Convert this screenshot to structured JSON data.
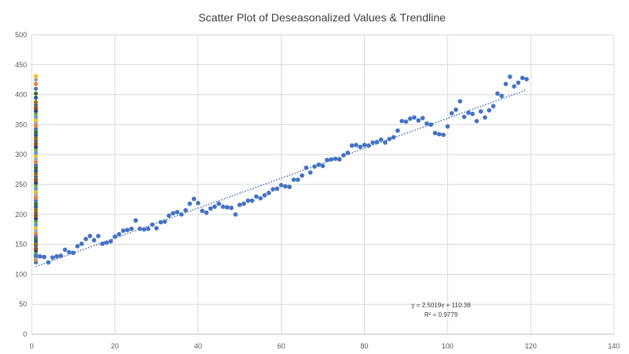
{
  "chart_data": {
    "type": "scatter",
    "title": "Scatter Plot of Deseasonalized Values & Trendline",
    "xlabel": "",
    "ylabel": "",
    "xlim": [
      0,
      140
    ],
    "ylim": [
      0,
      500
    ],
    "x_ticks": [
      0,
      20,
      40,
      60,
      80,
      100,
      120,
      140
    ],
    "y_ticks": [
      0,
      50,
      100,
      150,
      200,
      250,
      300,
      350,
      400,
      450,
      500
    ],
    "grid": true,
    "legend": "none",
    "colors": {
      "main_series": "#4472C4",
      "trendline": "#4472C4",
      "stacked_series_palette": [
        "#4472C4",
        "#ED7D31",
        "#A5A5A5",
        "#FFC000",
        "#5B9BD5",
        "#70AD47",
        "#264478",
        "#9E480E",
        "#636363",
        "#997300",
        "#255E91",
        "#43682B"
      ]
    },
    "series": [
      {
        "x": [
          1,
          2,
          3,
          4,
          5,
          6,
          7,
          8,
          9,
          10,
          11,
          12,
          13,
          14,
          15,
          16,
          17,
          18,
          19,
          20,
          21,
          22,
          23,
          24,
          25,
          26,
          27,
          28,
          29,
          30,
          31,
          32,
          33,
          34,
          35,
          36,
          37,
          38,
          39,
          40,
          41,
          42,
          43,
          44,
          45,
          46,
          47,
          48,
          49,
          50,
          51,
          52,
          53,
          54,
          55,
          56,
          57,
          58,
          59,
          60,
          61,
          62,
          63,
          64,
          65,
          66,
          67,
          68,
          69,
          70,
          71,
          72,
          73,
          74,
          75,
          76,
          77,
          78,
          79,
          80,
          81,
          82,
          83,
          84,
          85,
          86,
          87,
          88,
          89,
          90,
          91,
          92,
          93,
          94,
          95,
          96,
          97,
          98,
          99,
          100,
          101,
          102,
          103,
          104,
          105,
          106,
          107,
          108,
          109,
          110,
          111,
          112,
          113,
          114,
          115,
          116,
          117,
          118,
          119
        ],
        "y": [
          131,
          130,
          129,
          120,
          128,
          130,
          131,
          141,
          137,
          136,
          147,
          151,
          159,
          164,
          157,
          164,
          151,
          153,
          155,
          163,
          167,
          173,
          174,
          176,
          190,
          176,
          175,
          176,
          183,
          177,
          187,
          188,
          198,
          202,
          204,
          200,
          207,
          218,
          226,
          219,
          206,
          203,
          210,
          213,
          218,
          213,
          212,
          211,
          200,
          216,
          218,
          223,
          223,
          230,
          227,
          232,
          236,
          242,
          243,
          249,
          247,
          246,
          258,
          258,
          265,
          278,
          270,
          280,
          283,
          281,
          291,
          292,
          293,
          292,
          299,
          303,
          315,
          316,
          313,
          316,
          315,
          320,
          321,
          325,
          320,
          326,
          329,
          340,
          356,
          355,
          360,
          362,
          357,
          361,
          352,
          350,
          336,
          334,
          333,
          347,
          369,
          375,
          389,
          363,
          370,
          368,
          356,
          372,
          362,
          374,
          381,
          402,
          398,
          418,
          430,
          414,
          420,
          428,
          426
        ]
      },
      {
        "x": [
          1,
          1,
          1,
          1,
          1,
          1,
          1,
          1,
          1,
          1,
          1,
          1,
          1,
          1,
          1,
          1,
          1,
          1,
          1,
          1,
          1,
          1,
          1,
          1,
          1,
          1,
          1,
          1,
          1,
          1,
          1,
          1,
          1,
          1,
          1,
          1,
          1,
          1,
          1,
          1,
          1,
          1,
          1,
          1,
          1,
          1,
          1,
          1,
          1,
          1,
          1,
          1,
          1,
          1,
          1,
          1,
          1,
          1,
          1,
          1,
          1,
          1,
          1,
          1
        ],
        "y": [
          120,
          124,
          127,
          130,
          133,
          136,
          140,
          143,
          148,
          152,
          156,
          160,
          164,
          168,
          173,
          178,
          183,
          188,
          193,
          198,
          203,
          208,
          213,
          218,
          223,
          228,
          233,
          238,
          243,
          248,
          253,
          258,
          263,
          268,
          273,
          278,
          283,
          288,
          293,
          298,
          303,
          308,
          313,
          318,
          323,
          328,
          333,
          338,
          343,
          348,
          353,
          358,
          363,
          368,
          373,
          378,
          383,
          388,
          395,
          402,
          410,
          418,
          425,
          431
        ]
      }
    ],
    "trendline": {
      "type": "linear",
      "slope": 2.5019,
      "intercept": 110.38,
      "x_range": [
        1,
        119
      ],
      "equation": "y = 2.5019x + 110.38",
      "r_squared": "R² = 0.9779"
    }
  }
}
